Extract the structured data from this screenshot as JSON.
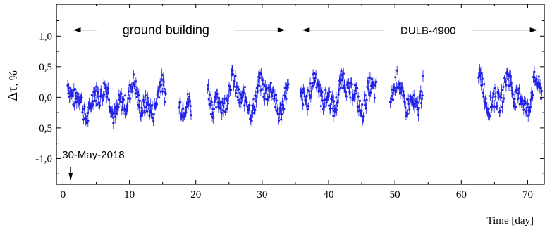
{
  "chart_data": {
    "type": "scatter",
    "title": "",
    "xlabel": "Time [day]",
    "ylabel_prefix": "Δτ",
    "ylabel_unit": ", %",
    "xlim": [
      -1,
      72.5
    ],
    "ylim": [
      -1.42,
      1.52
    ],
    "xticks": [
      0,
      10,
      20,
      30,
      40,
      50,
      60,
      70
    ],
    "yticks": [
      -1.0,
      -0.5,
      0.0,
      0.5,
      1.0
    ],
    "ytick_labels": [
      "-1,0",
      "-0,5",
      "0,0",
      "0,5",
      "1,0"
    ],
    "grid": false,
    "error_bars": true,
    "marker_color": "#1f1fe6",
    "segments": [
      {
        "x_start": 0.7,
        "x_end": 15.5,
        "base": -0.05
      },
      {
        "x_start": 17.5,
        "x_end": 19.3,
        "base": -0.25
      },
      {
        "x_start": 21.8,
        "x_end": 34.0,
        "base": 0.02
      },
      {
        "x_start": 35.8,
        "x_end": 47.2,
        "base": 0.05
      },
      {
        "x_start": 49.3,
        "x_end": 54.3,
        "base": 0.0
      },
      {
        "x_start": 62.6,
        "x_end": 72.2,
        "base": 0.05
      }
    ],
    "annotations": [
      {
        "text": "ground building",
        "x_from": 1.5,
        "x_to": 33.5,
        "y": 1.1,
        "label_center_x": 15.5
      },
      {
        "text": "DULB-4900",
        "x_from": 36.0,
        "x_to": 71.5,
        "y": 1.1,
        "label_center_x": 55.0
      },
      {
        "text": "30-May-2018",
        "x": 0.3,
        "y": -1.02,
        "arrow_to_y": -1.42
      }
    ]
  }
}
